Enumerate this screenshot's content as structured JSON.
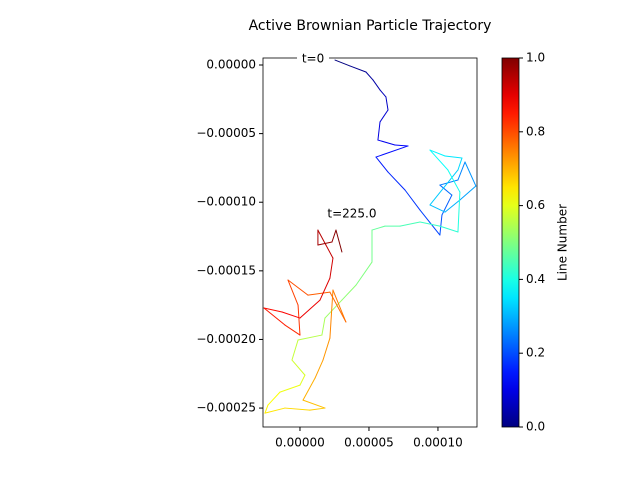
{
  "chart_data": {
    "type": "line",
    "title": "Active Brownian Particle Trajectory",
    "colormap": "jet",
    "x": [
      2.54e-05,
      3.62e-05,
      4.78e-05,
      5.29e-05,
      5.8e-05,
      6.23e-05,
      6.38e-05,
      5.8e-05,
      5.65e-05,
      6.88e-05,
      7.83e-05,
      5.51e-05,
      6.38e-05,
      7.61e-05,
      8.7e-05,
      0.0001014,
      0.0001029,
      0.0001101,
      0.0001014,
      0.0001145,
      0.0001196,
      0.0001275,
      0.0001159,
      0.0001051,
      9.42e-05,
      0.0001145,
      0.0001174,
      0.0001051,
      9.42e-05,
      0.0001072,
      0.0001159,
      0.0001145,
      0.0001014,
      8.7e-05,
      7.25e-05,
      6.16e-05,
      5.22e-05,
      5.22e-05,
      4.06e-05,
      3.04e-05,
      1.81e-05,
      1.59e-05,
      -1.4e-06,
      -5.8e-06,
      3.6e-06,
      0,
      -1.45e-05,
      -2.32e-05,
      -2.54e-05,
      -1.09e-05,
      7.2e-06,
      1.81e-05,
      2.2e-06,
      1.09e-05,
      1.67e-05,
      2.17e-05,
      2.39e-05,
      3.33e-05,
      2.17e-05,
      5.8e-06,
      -8.7e-06,
      -1.4e-06,
      0,
      -1.09e-05,
      -2.61e-05,
      -1.3e-05,
      0,
      1.45e-05,
      2.17e-05,
      2.39e-05,
      1.88e-05,
      1.3e-05,
      1.3e-05,
      2.32e-05,
      2.61e-05,
      3.04e-05
    ],
    "series": [
      {
        "values": [
          3.6e-06,
          -7e-07,
          -5.1e-06,
          -1.09e-05,
          -1.82e-05,
          -2.33e-05,
          -3.28e-05,
          -4.15e-05,
          -5.47e-05,
          -5.83e-05,
          -5.9e-05,
          -6.71e-05,
          -7.8e-05,
          -9.11e-05,
          -0.0001057,
          -0.0001239,
          -0.0001093,
          -9.48e-05,
          -8.75e-05,
          -8.38e-05,
          -7.07e-05,
          -8.82e-05,
          -9.84e-05,
          -0.0001072,
          -0.000102,
          -7.65e-05,
          -6.78e-05,
          -6.63e-05,
          -6.2e-05,
          -7.65e-05,
          -9.26e-05,
          -0.0001217,
          -0.0001174,
          -0.0001144,
          -0.0001174,
          -0.0001174,
          -0.0001203,
          -0.0001436,
          -0.0001604,
          -0.0001713,
          -0.0001844,
          -0.0001968,
          -0.0002004,
          -0.000215,
          -0.000226,
          -0.0002333,
          -0.0002384,
          -0.0002478,
          -0.0002537,
          -0.00025,
          -0.0002515,
          -0.00025,
          -0.0002442,
          -0.0002282,
          -0.000215,
          -0.000199,
          -0.000164,
          -0.0001873,
          -0.0001655,
          -0.0001677,
          -0.0001567,
          -0.0001749,
          -0.0001968,
          -0.0001895,
          -0.0001771,
          -0.00018,
          -0.0001844,
          -0.0001713,
          -0.0001553,
          -0.0001407,
          -0.0001312,
          -0.0001203,
          -0.0001312,
          -0.000129,
          -0.0001203,
          -0.0001363
        ]
      }
    ],
    "xlim": [
      -2.68e-05,
      0.0001283
    ],
    "ylim": [
      -0.0002638,
      5.1e-06
    ],
    "xticks": [
      {
        "value": 0,
        "label": "0.00000"
      },
      {
        "value": 5e-05,
        "label": "0.00005"
      },
      {
        "value": 0.0001,
        "label": "0.00010"
      }
    ],
    "yticks": [
      {
        "value": 0,
        "label": "0.00000"
      },
      {
        "value": -5e-05,
        "label": "−0.00005"
      },
      {
        "value": -0.0001,
        "label": "−0.00010"
      },
      {
        "value": -0.00015,
        "label": "−0.00015"
      },
      {
        "value": -0.0002,
        "label": "−0.00020"
      },
      {
        "value": -0.00025,
        "label": "−0.00025"
      }
    ],
    "annotations": [
      "t=0",
      "t=225.0"
    ],
    "colorbar": {
      "label": "Line Number",
      "clim": [
        0,
        1
      ],
      "ticks": [
        {
          "value": 0,
          "label": "0.0"
        },
        {
          "value": 0.2,
          "label": "0.2"
        },
        {
          "value": 0.4,
          "label": "0.4"
        },
        {
          "value": 0.6,
          "label": "0.6"
        },
        {
          "value": 0.8,
          "label": "0.8"
        },
        {
          "value": 1,
          "label": "1.0"
        }
      ]
    }
  }
}
